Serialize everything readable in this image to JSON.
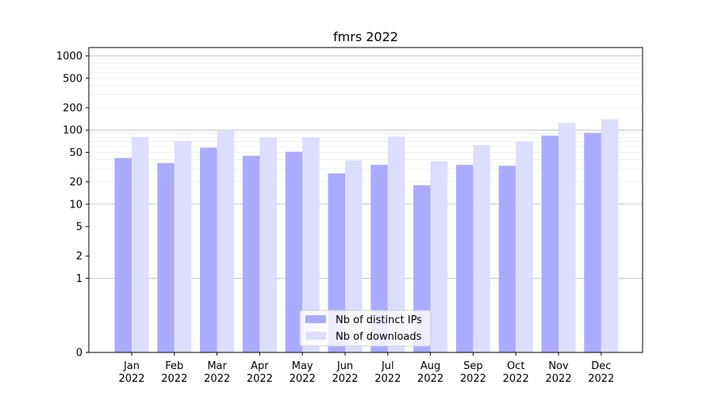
{
  "chart_data": {
    "type": "bar",
    "title": "fmrs 2022",
    "xlabel": "",
    "ylabel": "",
    "yscale": "symlog",
    "ylim": [
      0,
      1300
    ],
    "yticks": [
      0,
      1,
      2,
      5,
      10,
      20,
      50,
      100,
      200,
      500,
      1000
    ],
    "ytick_labels": [
      "0",
      "1",
      "2",
      "5",
      "10",
      "20",
      "50",
      "100",
      "200",
      "500",
      "1000"
    ],
    "categories": [
      "Jan\n2022",
      "Feb\n2022",
      "Mar\n2022",
      "Apr\n2022",
      "May\n2022",
      "Jun\n2022",
      "Jul\n2022",
      "Aug\n2022",
      "Sep\n2022",
      "Oct\n2022",
      "Nov\n2022",
      "Dec\n2022"
    ],
    "series": [
      {
        "name": "Nb of distinct IPs",
        "values": [
          42,
          36,
          58,
          45,
          51,
          26,
          34,
          18,
          34,
          33,
          84,
          92
        ],
        "color": "#aaaaff"
      },
      {
        "name": "Nb of downloads",
        "values": [
          81,
          71,
          100,
          79,
          80,
          39,
          82,
          38,
          63,
          70,
          125,
          140
        ],
        "color": "#ddddff"
      }
    ],
    "grid": true,
    "legend_position": "bottom-center"
  }
}
